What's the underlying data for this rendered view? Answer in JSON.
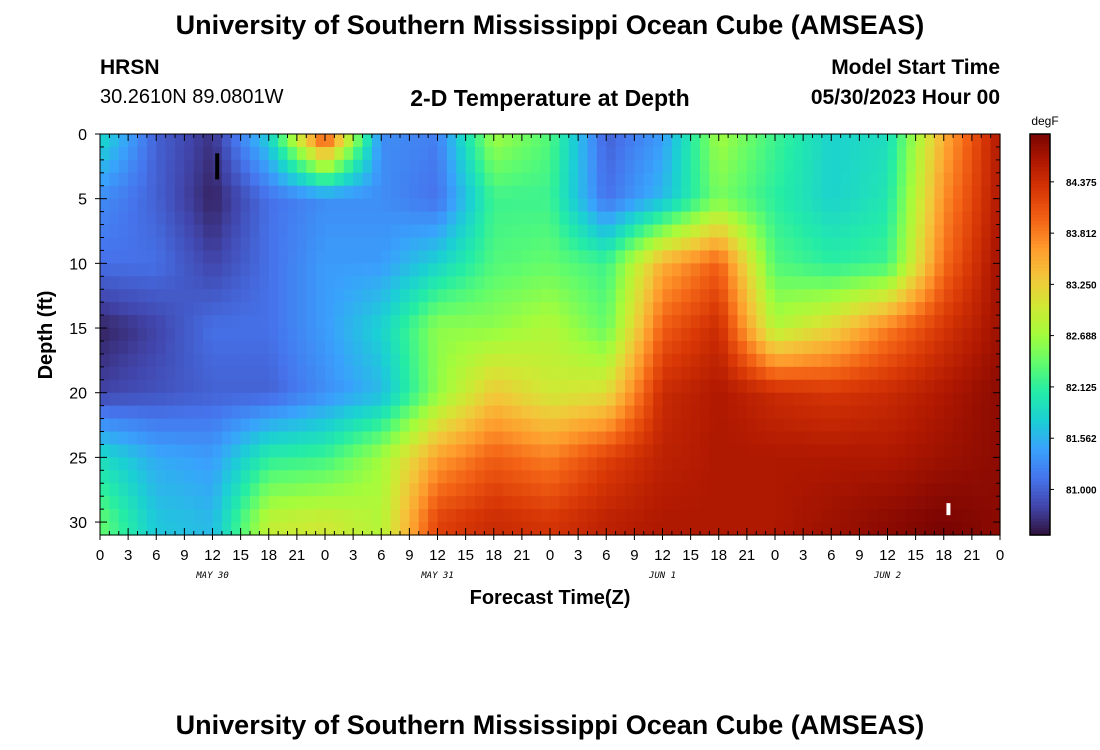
{
  "header": {
    "title": "University of Southern Mississippi Ocean Cube (AMSEAS)",
    "station": "HRSN",
    "location": "30.2610N  89.0801W",
    "subtitle": "2-D Temperature at Depth",
    "model_start_label": "Model Start Time",
    "model_start_value": "05/30/2023 Hour 00"
  },
  "footer": {
    "repeated_title": "University of Southern Mississippi Ocean Cube (AMSEAS)"
  },
  "chart_data": {
    "type": "heatmap",
    "title": "2-D Temperature at Depth",
    "xlabel": "Forecast Time(Z)",
    "ylabel": "Depth (ft)",
    "colorbar_unit": "degF",
    "colorbar_ticks": [
      "84.375",
      "83.812",
      "83.250",
      "82.688",
      "82.125",
      "81.562",
      "81.000"
    ],
    "colorbar_range": [
      80.5,
      84.9
    ],
    "x_range_hours": [
      0,
      96
    ],
    "x_tick_labels": [
      "0",
      "3",
      "6",
      "9",
      "12",
      "15",
      "18",
      "21",
      "0",
      "3",
      "6",
      "9",
      "12",
      "15",
      "18",
      "21",
      "0",
      "3",
      "6",
      "9",
      "12",
      "15",
      "18",
      "21",
      "0",
      "3",
      "6",
      "9",
      "12",
      "15",
      "18",
      "21",
      "0"
    ],
    "day_labels": [
      "MAY 30",
      "MAY 31",
      "JUN 1",
      "JUN 2"
    ],
    "y_range_ft": [
      0,
      31
    ],
    "y_ticks": [
      0,
      5,
      10,
      15,
      20,
      25,
      30
    ],
    "y_inverted": true,
    "grid": false,
    "colormap": [
      "#30123b",
      "#4145ab",
      "#4675ed",
      "#39a2fc",
      "#1bcfd4",
      "#24eca6",
      "#61fc6c",
      "#a4fc3b",
      "#d1e834",
      "#f3c63a",
      "#fe9b2d",
      "#f36315",
      "#d93806",
      "#b11901",
      "#7a0402"
    ],
    "temperature_grid": {
      "x_hours": [
        0,
        6,
        12,
        18,
        24,
        30,
        36,
        42,
        48,
        54,
        60,
        66,
        72,
        78,
        84,
        90,
        96
      ],
      "depth_ft": [
        0,
        5,
        10,
        15,
        20,
        25,
        30
      ],
      "degF": [
        [
          81.9,
          81.0,
          80.7,
          81.8,
          84.3,
          81.3,
          81.2,
          82.7,
          82.3,
          81.0,
          81.4,
          82.7,
          82.2,
          81.8,
          81.9,
          83.5,
          84.6
        ],
        [
          81.3,
          81.0,
          80.6,
          81.1,
          81.3,
          81.3,
          81.1,
          82.2,
          82.2,
          81.1,
          81.6,
          82.5,
          82.1,
          81.8,
          82.0,
          83.7,
          84.6
        ],
        [
          81.1,
          81.1,
          80.8,
          81.1,
          81.4,
          81.4,
          81.8,
          82.3,
          82.4,
          82.2,
          83.5,
          84.0,
          82.3,
          82.1,
          82.2,
          83.9,
          84.7
        ],
        [
          80.6,
          80.8,
          81.1,
          81.1,
          81.4,
          81.8,
          82.6,
          82.6,
          82.8,
          82.4,
          84.0,
          84.4,
          82.8,
          83.2,
          83.8,
          84.3,
          84.7
        ],
        [
          80.8,
          80.9,
          81.0,
          81.0,
          81.3,
          81.6,
          82.6,
          83.3,
          83.0,
          83.1,
          84.4,
          84.6,
          84.4,
          84.3,
          84.4,
          84.6,
          84.8
        ],
        [
          81.9,
          81.5,
          81.4,
          82.1,
          82.2,
          82.7,
          83.6,
          84.0,
          83.8,
          84.2,
          84.5,
          84.6,
          84.6,
          84.6,
          84.6,
          84.7,
          84.8
        ],
        [
          82.4,
          81.7,
          81.6,
          82.9,
          83.0,
          82.8,
          84.2,
          84.4,
          84.3,
          84.5,
          84.6,
          84.6,
          84.6,
          84.7,
          84.8,
          84.9,
          84.8
        ]
      ]
    },
    "markers": [
      {
        "name": "black tick",
        "x_hour": 12.5,
        "depth_ft": 2.5,
        "color": "#000000"
      },
      {
        "name": "white tick",
        "x_hour": 90.5,
        "depth_ft": 29.0,
        "color": "#ffffff"
      }
    ]
  }
}
